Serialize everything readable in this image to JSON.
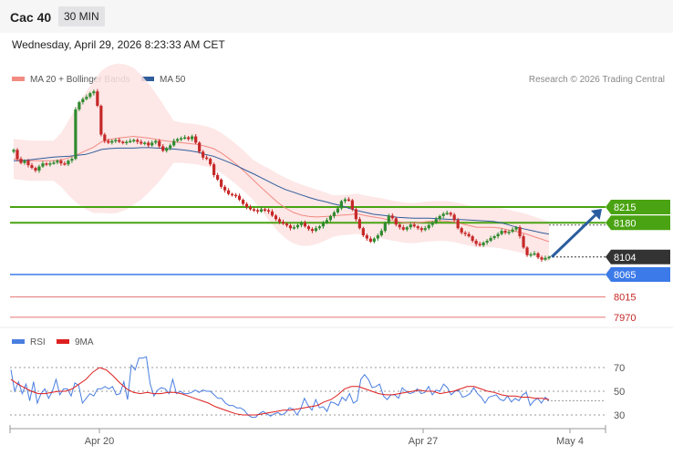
{
  "header": {
    "instrument": "Cac 40",
    "timeframe": "30 MIN"
  },
  "timestamp": "Wednesday, April 29, 2026 8:23:33 AM CET",
  "legend": {
    "ma20": "MA 20 + Bollinger Bands",
    "ma50": "MA 50",
    "copyright": "Research © 2026 Trading Central",
    "rsi": "RSI",
    "rsi_ma": "9MA"
  },
  "colors": {
    "ma20": "#f28b82",
    "ma50": "#2f5d9a",
    "bands": "#fde3e3",
    "up": "#2f8a2f",
    "down": "#c62828",
    "resistance": "#4aa312",
    "support_main": "#3b7ae8",
    "support_minor": "#e57373",
    "last": "#333333",
    "arrow": "#2a5d9f",
    "rsi": "#4a7ee0",
    "rsi_ma": "#dd1f1f"
  },
  "chart_data": [
    {
      "type": "candlestick",
      "x_labels": [
        "Apr 20",
        "Apr 27",
        "May 4"
      ],
      "levels": [
        {
          "value": 8215,
          "label": "8215",
          "kind": "resistance"
        },
        {
          "value": 8180,
          "label": "8180",
          "kind": "resistance"
        },
        {
          "value": 8104,
          "label": "8104",
          "kind": "last"
        },
        {
          "value": 8065,
          "label": "8065",
          "kind": "support"
        },
        {
          "value": 8015,
          "label": "8015",
          "kind": "support"
        },
        {
          "value": 7970,
          "label": "7970",
          "kind": "support"
        }
      ],
      "projection": {
        "from": 8104,
        "to": 8215
      },
      "close": [
        8342,
        8322,
        8313,
        8318,
        8308,
        8302,
        8296,
        8305,
        8312,
        8310,
        8312,
        8314,
        8318,
        8312,
        8310,
        8318,
        8322,
        8432,
        8448,
        8455,
        8460,
        8468,
        8472,
        8440,
        8376,
        8362,
        8358,
        8362,
        8364,
        8360,
        8358,
        8360,
        8362,
        8364,
        8360,
        8356,
        8358,
        8352,
        8358,
        8362,
        8350,
        8340,
        8346,
        8352,
        8362,
        8366,
        8368,
        8370,
        8366,
        8372,
        8358,
        8338,
        8325,
        8322,
        8310,
        8286,
        8276,
        8260,
        8252,
        8244,
        8242,
        8240,
        8231,
        8222,
        8215,
        8210,
        8208,
        8205,
        8210,
        8208,
        8205,
        8196,
        8188,
        8182,
        8178,
        8174,
        8168,
        8170,
        8175,
        8180,
        8172,
        8166,
        8162,
        8168,
        8172,
        8180,
        8186,
        8195,
        8203,
        8212,
        8228,
        8232,
        8230,
        8210,
        8188,
        8168,
        8152,
        8145,
        8138,
        8145,
        8152,
        8162,
        8180,
        8196,
        8190,
        8176,
        8170,
        8165,
        8170,
        8176,
        8172,
        8168,
        8164,
        8168,
        8175,
        8180,
        8188,
        8195,
        8200,
        8202,
        8198,
        8186,
        8168,
        8158,
        8155,
        8150,
        8140,
        8133,
        8130,
        8136,
        8140,
        8146,
        8150,
        8155,
        8162,
        8158,
        8160,
        8165,
        8170,
        8150,
        8125,
        8108,
        8110,
        8112,
        8103,
        8098,
        8102,
        8104
      ],
      "ma20": [
        8322,
        8320,
        8318,
        8318,
        8318,
        8318,
        8320,
        8325,
        8332,
        8340,
        8348,
        8360,
        8365,
        8368,
        8370,
        8372,
        8370,
        8368,
        8365,
        8362,
        8360,
        8358,
        8356,
        8354,
        8350,
        8345,
        8335,
        8322,
        8308,
        8292,
        8275,
        8258,
        8242,
        8226,
        8213,
        8203,
        8197,
        8194,
        8193,
        8194,
        8195,
        8197,
        8198,
        8200,
        8196,
        8193,
        8190,
        8186,
        8183,
        8180,
        8179,
        8181,
        8183,
        8184,
        8184,
        8182,
        8178,
        8174,
        8170,
        8170,
        8170,
        8168,
        8164,
        8160,
        8156,
        8150,
        8144,
        8138
      ],
      "ma50": [
        8318,
        8318,
        8320,
        8322,
        8324,
        8326,
        8327,
        8328,
        8330,
        8332,
        8337,
        8343,
        8345,
        8346,
        8346,
        8346,
        8347,
        8347,
        8346,
        8345,
        8344,
        8342,
        8340,
        8337,
        8332,
        8328,
        8321,
        8314,
        8306,
        8297,
        8289,
        8280,
        8271,
        8262,
        8254,
        8248,
        8242,
        8236,
        8231,
        8227,
        8222,
        8218,
        8212,
        8207,
        8203,
        8199,
        8197,
        8195,
        8192,
        8191,
        8190,
        8190,
        8190,
        8189,
        8188,
        8187,
        8187,
        8186,
        8185,
        8184,
        8183,
        8180,
        8175,
        8170,
        8166,
        8162,
        8158,
        8155
      ]
    },
    {
      "type": "line",
      "name": "RSI",
      "y_ticks": [
        70,
        50,
        30
      ],
      "ylim": [
        20,
        80
      ],
      "rsi": [
        68,
        50,
        58,
        48,
        56,
        42,
        58,
        40,
        48,
        52,
        44,
        50,
        60,
        47,
        52,
        52,
        46,
        57,
        55,
        40,
        44,
        48,
        46,
        52,
        52,
        54,
        52,
        54,
        47,
        48,
        58,
        43,
        72,
        68,
        78,
        78,
        79,
        56,
        46,
        51,
        53,
        52,
        48,
        60,
        48,
        50,
        48,
        48,
        49,
        51,
        49,
        51,
        50,
        50,
        47,
        44,
        44,
        40,
        38,
        38,
        36,
        36,
        34,
        30,
        28,
        28,
        31,
        33,
        31,
        29,
        31,
        32,
        30,
        32,
        36,
        35,
        30,
        35,
        44,
        38,
        34,
        43,
        36,
        37,
        33,
        41,
        40,
        38,
        45,
        42,
        48,
        40,
        42,
        60,
        64,
        60,
        53,
        54,
        56,
        46,
        43,
        47,
        47,
        44,
        53,
        50,
        48,
        49,
        52,
        48,
        49,
        54,
        47,
        51,
        50,
        56,
        53,
        47,
        50,
        51,
        45,
        46,
        48,
        53,
        48,
        45,
        40,
        45,
        46,
        47,
        43,
        42,
        46,
        41,
        44,
        42,
        47,
        49,
        38,
        42,
        44,
        40,
        45,
        42
      ],
      "rsi_ma": [
        60,
        56,
        53,
        50,
        48,
        48,
        49,
        50,
        50,
        52,
        56,
        60,
        66,
        70,
        68,
        63,
        57,
        52,
        49,
        48,
        49,
        48,
        48,
        49,
        49,
        48,
        46,
        44,
        42,
        40,
        37,
        35,
        33,
        31,
        30,
        30,
        30,
        31,
        32,
        33,
        34,
        34,
        35,
        36,
        37,
        38,
        41,
        43,
        47,
        52,
        54,
        54,
        52,
        50,
        48,
        47,
        47,
        48,
        49,
        50,
        51,
        50,
        50,
        48,
        49,
        50,
        52,
        54,
        54,
        52,
        50,
        49,
        47,
        46,
        46,
        45,
        45,
        44,
        44,
        43
      ]
    }
  ]
}
